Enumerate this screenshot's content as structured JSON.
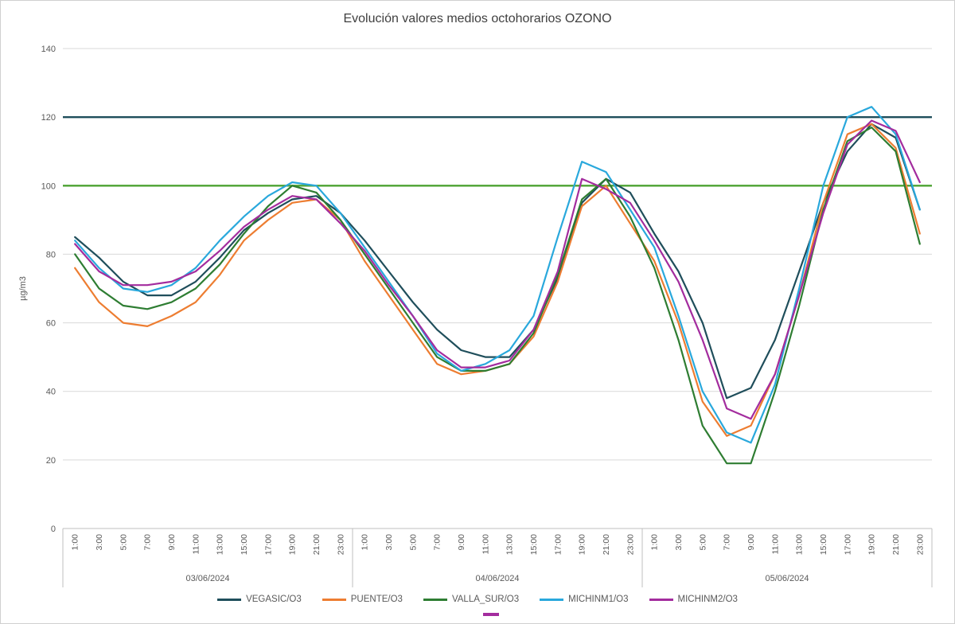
{
  "title": "Evolución valores medios octohorarios OZONO",
  "y_axis": {
    "title": "µg/m3",
    "ticks": [
      0,
      20,
      40,
      60,
      80,
      100,
      120,
      140
    ],
    "max": 140
  },
  "x_axis": {
    "hour_labels": [
      "1:00",
      "3:00",
      "5:00",
      "7:00",
      "9:00",
      "11:00",
      "13:00",
      "15:00",
      "17:00",
      "19:00",
      "21:00",
      "23:00"
    ],
    "day_labels": [
      "03/06/2024",
      "04/06/2024",
      "05/06/2024"
    ]
  },
  "chart_data": {
    "type": "line",
    "title": "Evolución valores medios octohorarios OZONO",
    "ylabel": "µg/m3",
    "ylim": [
      0,
      140
    ],
    "grid": true,
    "legend_position": "bottom",
    "categories_per_day": [
      "1:00",
      "3:00",
      "5:00",
      "7:00",
      "9:00",
      "11:00",
      "13:00",
      "15:00",
      "17:00",
      "19:00",
      "21:00",
      "23:00"
    ],
    "days": [
      "03/06/2024",
      "04/06/2024",
      "05/06/2024"
    ],
    "thresholds": [
      {
        "value": 120,
        "color": "#1F4E5B"
      },
      {
        "value": 100,
        "color": "#4CA232"
      }
    ],
    "series": [
      {
        "name": "VEGASIC/O3",
        "color": "#1F4E5B",
        "values": [
          85,
          79,
          72,
          68,
          68,
          72,
          79,
          87,
          92,
          96,
          97,
          92,
          84,
          75,
          66,
          58,
          52,
          50,
          50,
          58,
          73,
          95,
          102,
          98,
          86,
          75,
          60,
          38,
          41,
          55,
          75,
          95,
          110,
          118,
          114,
          93
        ]
      },
      {
        "name": "PUENTE/O3",
        "color": "#ED7D31",
        "values": [
          76,
          66,
          60,
          59,
          62,
          66,
          74,
          84,
          90,
          95,
          96,
          90,
          78,
          68,
          58,
          48,
          45,
          46,
          48,
          56,
          72,
          94,
          100,
          89,
          78,
          60,
          37,
          27,
          30,
          45,
          68,
          95,
          115,
          118,
          111,
          86
        ]
      },
      {
        "name": "VALLA_SUR/O3",
        "color": "#2E7D32",
        "values": [
          80,
          70,
          65,
          64,
          66,
          70,
          77,
          86,
          94,
          100,
          98,
          90,
          80,
          70,
          60,
          50,
          46,
          46,
          48,
          57,
          74,
          96,
          102,
          91,
          76,
          55,
          30,
          19,
          19,
          40,
          65,
          93,
          113,
          117,
          110,
          83
        ]
      },
      {
        "name": "MICHINM1/O3",
        "color": "#29A8DC",
        "values": [
          84,
          76,
          70,
          69,
          71,
          76,
          84,
          91,
          97,
          101,
          100,
          92,
          82,
          72,
          62,
          51,
          46,
          48,
          52,
          62,
          85,
          107,
          104,
          93,
          82,
          62,
          40,
          28,
          25,
          42,
          70,
          100,
          120,
          123,
          115,
          93
        ]
      },
      {
        "name": "MICHINM2/O3",
        "color": "#A32C9E",
        "values": [
          83,
          75,
          71,
          71,
          72,
          75,
          81,
          88,
          93,
          97,
          96,
          89,
          81,
          71,
          62,
          52,
          47,
          47,
          49,
          58,
          75,
          102,
          99,
          95,
          84,
          72,
          55,
          35,
          32,
          45,
          68,
          92,
          112,
          119,
          116,
          101
        ]
      }
    ]
  },
  "legend": {
    "overflow_marker_color": "#A32C9E"
  },
  "colors": {
    "grid": "#D9D9D9",
    "axis": "#BFBFBF",
    "tick_text": "#595959",
    "title_text": "#3F3F3F"
  }
}
